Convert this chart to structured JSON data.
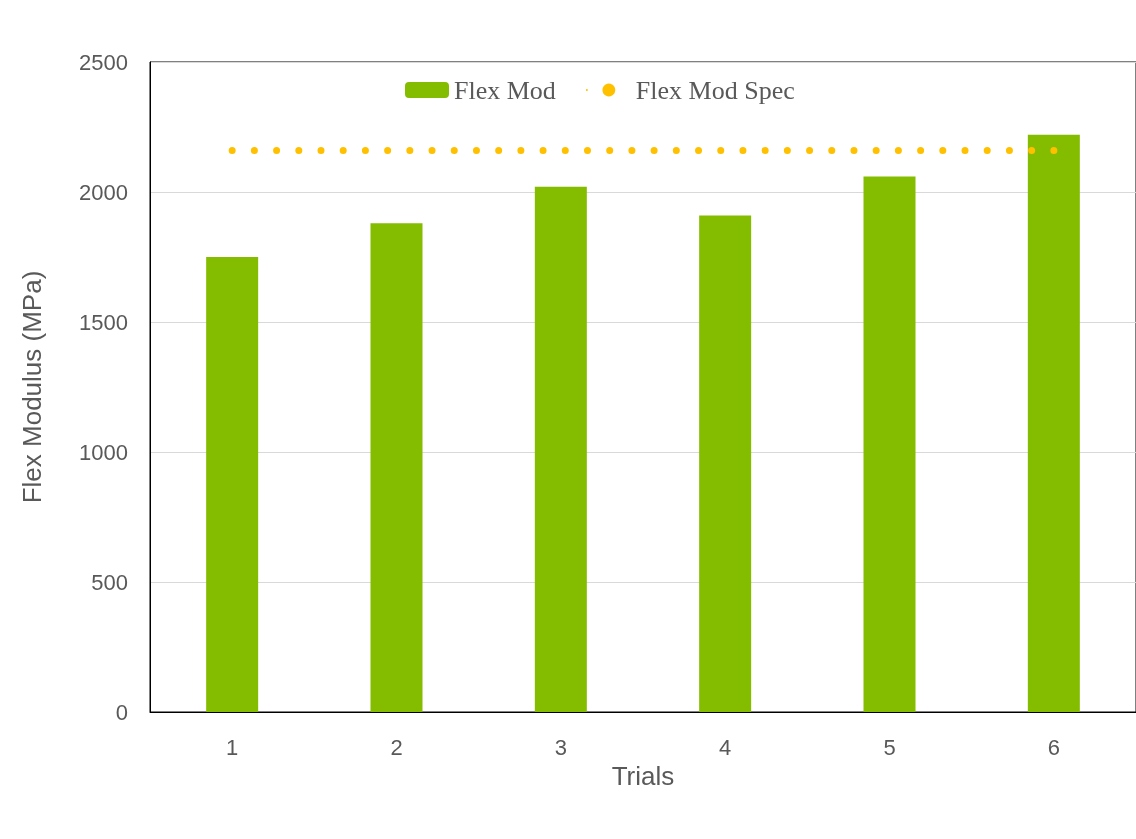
{
  "chart_data": {
    "type": "bar",
    "xlabel": "Trials",
    "ylabel": "Flex Modulus (MPa)",
    "categories": [
      "1",
      "2",
      "3",
      "4",
      "5",
      "6"
    ],
    "series": [
      {
        "name": "Flex Mod",
        "color": "#84bd00",
        "values": [
          1750,
          1880,
          2020,
          1910,
          2060,
          2220
        ]
      },
      {
        "name": "Flex Mod Spec",
        "type": "line",
        "color": "#ffc000",
        "line_style": "dotted",
        "marker": "none",
        "values": [
          2160,
          2160,
          2160,
          2160,
          2160,
          2160
        ]
      }
    ],
    "ylim": [
      0,
      2500
    ],
    "yticks": [
      0,
      500,
      1000,
      1500,
      2000,
      2500
    ],
    "grid": "y",
    "legend": "top"
  }
}
